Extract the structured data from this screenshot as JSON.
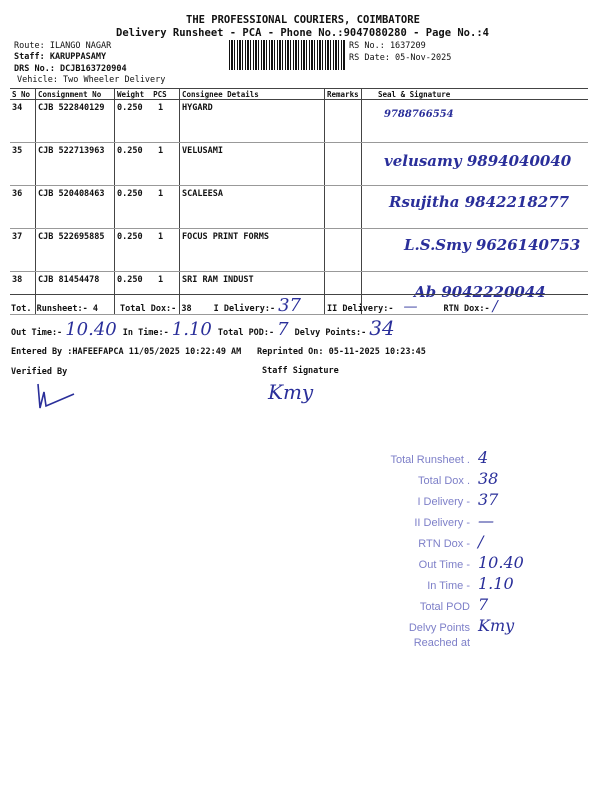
{
  "header": {
    "company": "THE PROFESSIONAL COURIERS, COIMBATORE",
    "subtitle": "Delivery Runsheet - PCA - Phone No.:9047080280 - Page No.:4",
    "route": "Route: ILANGO NAGAR",
    "staff": "Staff: KARUPPASAMY",
    "drs_no": "DRS No.: DCJB163720904",
    "vehicle": "Vehicle: Two Wheeler Delivery",
    "rs_no": "RS No.: 1637209",
    "rs_date": "RS Date: 05-Nov-2025"
  },
  "table": {
    "columns": [
      "S No",
      "Consignment No",
      "Weight",
      "PCS",
      "Consignee Details",
      "Remarks",
      "Seal & Signature"
    ],
    "rows": [
      {
        "sno": "34",
        "consignment": "CJB 522840129",
        "weight": "0.250",
        "pcs": "1",
        "consignee": "HYGARD",
        "remarks": "",
        "signature": "9788766554"
      },
      {
        "sno": "35",
        "consignment": "CJB 522713963",
        "weight": "0.250",
        "pcs": "1",
        "consignee": "VELUSAMI",
        "remarks": "",
        "signature": "velusamy 9894040040"
      },
      {
        "sno": "36",
        "consignment": "CJB 520408463",
        "weight": "0.250",
        "pcs": "1",
        "consignee": "SCALEESA",
        "remarks": "",
        "signature": "Rsujitha 9842218277"
      },
      {
        "sno": "37",
        "consignment": "CJB 522695885",
        "weight": "0.250",
        "pcs": "1",
        "consignee": "FOCUS PRINT FORMS",
        "remarks": "",
        "signature": "L.S.Smy 9626140753"
      },
      {
        "sno": "38",
        "consignment": "CJB 81454478",
        "weight": "0.250",
        "pcs": "1",
        "consignee": "SRI RAM INDUST",
        "remarks": "",
        "signature": "Ab 9042220044"
      }
    ]
  },
  "summary": {
    "tot_runsheet": "Tot. Runsheet:- 4",
    "total_dox": "Total Dox:-   38",
    "i_delivery": "I Delivery:-",
    "i_delivery_val": "37",
    "ii_delivery": "II Delivery:-",
    "ii_delivery_val": "—",
    "rtn_dox": "RTN Dox:-",
    "rtn_dox_val": "/",
    "out_time": "Out Time:-",
    "out_time_val": "10.40",
    "in_time": "In Time:-",
    "in_time_val": "1.10",
    "total_pod": "Total POD:-",
    "total_pod_val": "7",
    "delvy_points": "Delvy Points:-",
    "delvy_points_val": "34",
    "entered_by": "Entered By :HAFEEFAPCA 11/05/2025 10:22:49 AM",
    "reprinted": "Reprinted On: 05-11-2025 10:23:45",
    "verified_by": "Verified By",
    "staff_signature": "Staff Signature",
    "staff_sign_hw": "Kmy"
  },
  "stamp": {
    "labels": [
      "Total Runsheet .",
      "Total Dox .",
      "I Delivery -",
      "II Delivery -",
      "RTN Dox -",
      "Out Time -",
      "In Time -",
      "Total POD",
      "Delvy Points",
      "Reached at"
    ],
    "values": [
      "4",
      "38",
      "37",
      "—",
      "/",
      "10.40",
      "1.10",
      "7",
      "Kmy",
      ""
    ]
  }
}
